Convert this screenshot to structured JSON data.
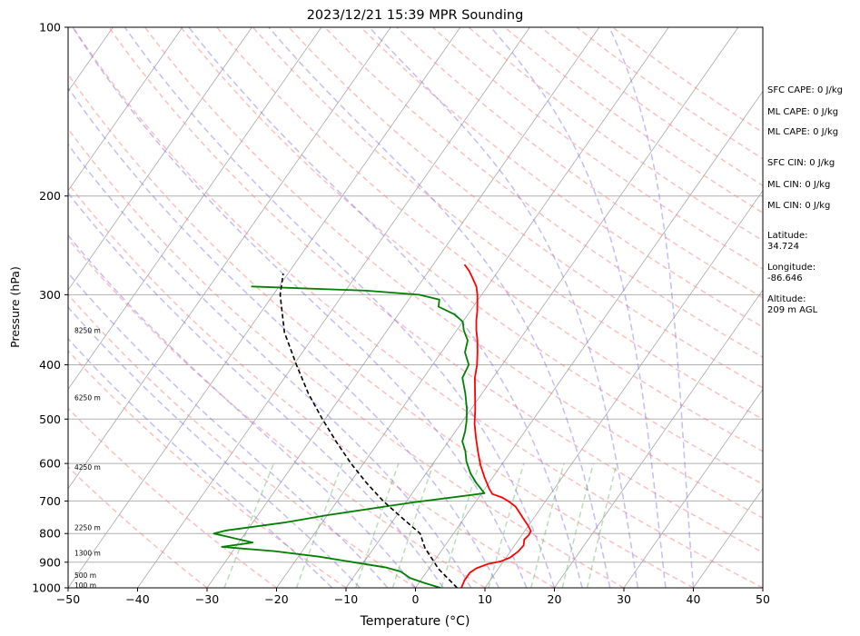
{
  "chart_data": {
    "type": "line",
    "title": "2023/12/21 15:39 MPR Sounding",
    "xlabel": "Temperature (°C)",
    "ylabel": "Pressure (hPa)",
    "xlim": [
      -50,
      50
    ],
    "ylim": [
      1000,
      100
    ],
    "yscale": "log",
    "skew": true,
    "grid": true,
    "x_ticks": [
      "−50",
      "−40",
      "−30",
      "−20",
      "−10",
      "0",
      "10",
      "20",
      "30",
      "40",
      "50"
    ],
    "y_ticks": [
      "100",
      "200",
      "300",
      "400",
      "500",
      "600",
      "700",
      "800",
      "900",
      "1000"
    ],
    "x_tick_values": [
      -50,
      -40,
      -30,
      -20,
      -10,
      0,
      10,
      20,
      30,
      40,
      50
    ],
    "y_tick_values": [
      100,
      200,
      300,
      400,
      500,
      600,
      700,
      800,
      900,
      1000
    ],
    "height_labels": [
      {
        "text": "8250 m",
        "p": 348
      },
      {
        "text": "6250 m",
        "p": 458
      },
      {
        "text": "4250 m",
        "p": 610
      },
      {
        "text": "2250 m",
        "p": 782
      },
      {
        "text": "1300 m",
        "p": 868
      },
      {
        "text": "500 m",
        "p": 950
      },
      {
        "text": "100 m",
        "p": 990
      }
    ],
    "series": [
      {
        "role": "temperature",
        "color": "#ff0000",
        "points": [
          [
            -25.5,
            265
          ],
          [
            -24.2,
            272
          ],
          [
            -23.0,
            280
          ],
          [
            -21.6,
            290
          ],
          [
            -20.6,
            300
          ],
          [
            -19.8,
            310
          ],
          [
            -18.9,
            322
          ],
          [
            -18.2,
            333
          ],
          [
            -17.2,
            347
          ],
          [
            -16.0,
            362
          ],
          [
            -14.8,
            380
          ],
          [
            -13.6,
            400
          ],
          [
            -12.6,
            422
          ],
          [
            -11.0,
            450
          ],
          [
            -9.4,
            480
          ],
          [
            -8.0,
            510
          ],
          [
            -6.4,
            540
          ],
          [
            -4.8,
            570
          ],
          [
            -3.0,
            604
          ],
          [
            -1.2,
            635
          ],
          [
            0.6,
            665
          ],
          [
            1.6,
            680
          ],
          [
            3.4,
            690
          ],
          [
            4.8,
            702
          ],
          [
            6.2,
            716
          ],
          [
            7.0,
            728
          ],
          [
            8.4,
            750
          ],
          [
            9.8,
            772
          ],
          [
            10.9,
            792
          ],
          [
            11.0,
            805
          ],
          [
            10.8,
            820
          ],
          [
            11.3,
            840
          ],
          [
            11.1,
            862
          ],
          [
            10.6,
            882
          ],
          [
            9.6,
            897
          ],
          [
            8.0,
            907
          ],
          [
            6.8,
            923
          ],
          [
            6.3,
            940
          ],
          [
            6.3,
            970
          ],
          [
            6.6,
            1000
          ]
        ]
      },
      {
        "role": "dewpoint",
        "color": "#008000",
        "points": [
          [
            -54.0,
            290
          ],
          [
            -37.0,
            295
          ],
          [
            -29.0,
            300
          ],
          [
            -25.6,
            306
          ],
          [
            -25.0,
            315
          ],
          [
            -22.0,
            325
          ],
          [
            -20.0,
            335
          ],
          [
            -19.0,
            347
          ],
          [
            -17.4,
            362
          ],
          [
            -16.6,
            380
          ],
          [
            -14.8,
            400
          ],
          [
            -14.4,
            422
          ],
          [
            -12.4,
            450
          ],
          [
            -10.6,
            480
          ],
          [
            -9.4,
            505
          ],
          [
            -8.6,
            526
          ],
          [
            -8.0,
            548
          ],
          [
            -6.6,
            570
          ],
          [
            -5.4,
            595
          ],
          [
            -3.6,
            625
          ],
          [
            -1.8,
            650
          ],
          [
            0.4,
            678
          ],
          [
            -9.0,
            704
          ],
          [
            -20.0,
            742
          ],
          [
            -25.5,
            765
          ],
          [
            -33.0,
            790
          ],
          [
            -34.5,
            800
          ],
          [
            -28.0,
            830
          ],
          [
            -32.0,
            845
          ],
          [
            -24.0,
            860
          ],
          [
            -17.0,
            880
          ],
          [
            -11.5,
            900
          ],
          [
            -6.2,
            920
          ],
          [
            -3.8,
            935
          ],
          [
            -3.0,
            945
          ],
          [
            -1.8,
            960
          ],
          [
            0.8,
            980
          ],
          [
            3.6,
            1000
          ]
        ]
      },
      {
        "role": "parcel",
        "color": "#000000",
        "dashed": true,
        "points": [
          [
            6.0,
            1000
          ],
          [
            3.6,
            960
          ],
          [
            1.4,
            925
          ],
          [
            -0.4,
            890
          ],
          [
            -2.6,
            850
          ],
          [
            -4.8,
            800
          ],
          [
            -9.0,
            750
          ],
          [
            -13.4,
            700
          ],
          [
            -17.6,
            650
          ],
          [
            -21.8,
            600
          ],
          [
            -26.0,
            550
          ],
          [
            -30.4,
            500
          ],
          [
            -35.0,
            450
          ],
          [
            -39.6,
            400
          ],
          [
            -44.6,
            350
          ],
          [
            -49.0,
            300
          ],
          [
            -50.7,
            275
          ]
        ]
      }
    ],
    "side_annotations": [
      "SFC CAPE: 0 J/kg",
      "ML CAPE: 0 J/kg",
      "ML CAPE: 0 J/kg",
      "SFC CIN: 0 J/kg",
      "ML CIN: 0 J/kg",
      "ML CIN: 0 J/kg",
      "Latitude:",
      "34.724",
      "Longitude:",
      "-86.646",
      "Altitude:",
      "209 m AGL"
    ]
  }
}
